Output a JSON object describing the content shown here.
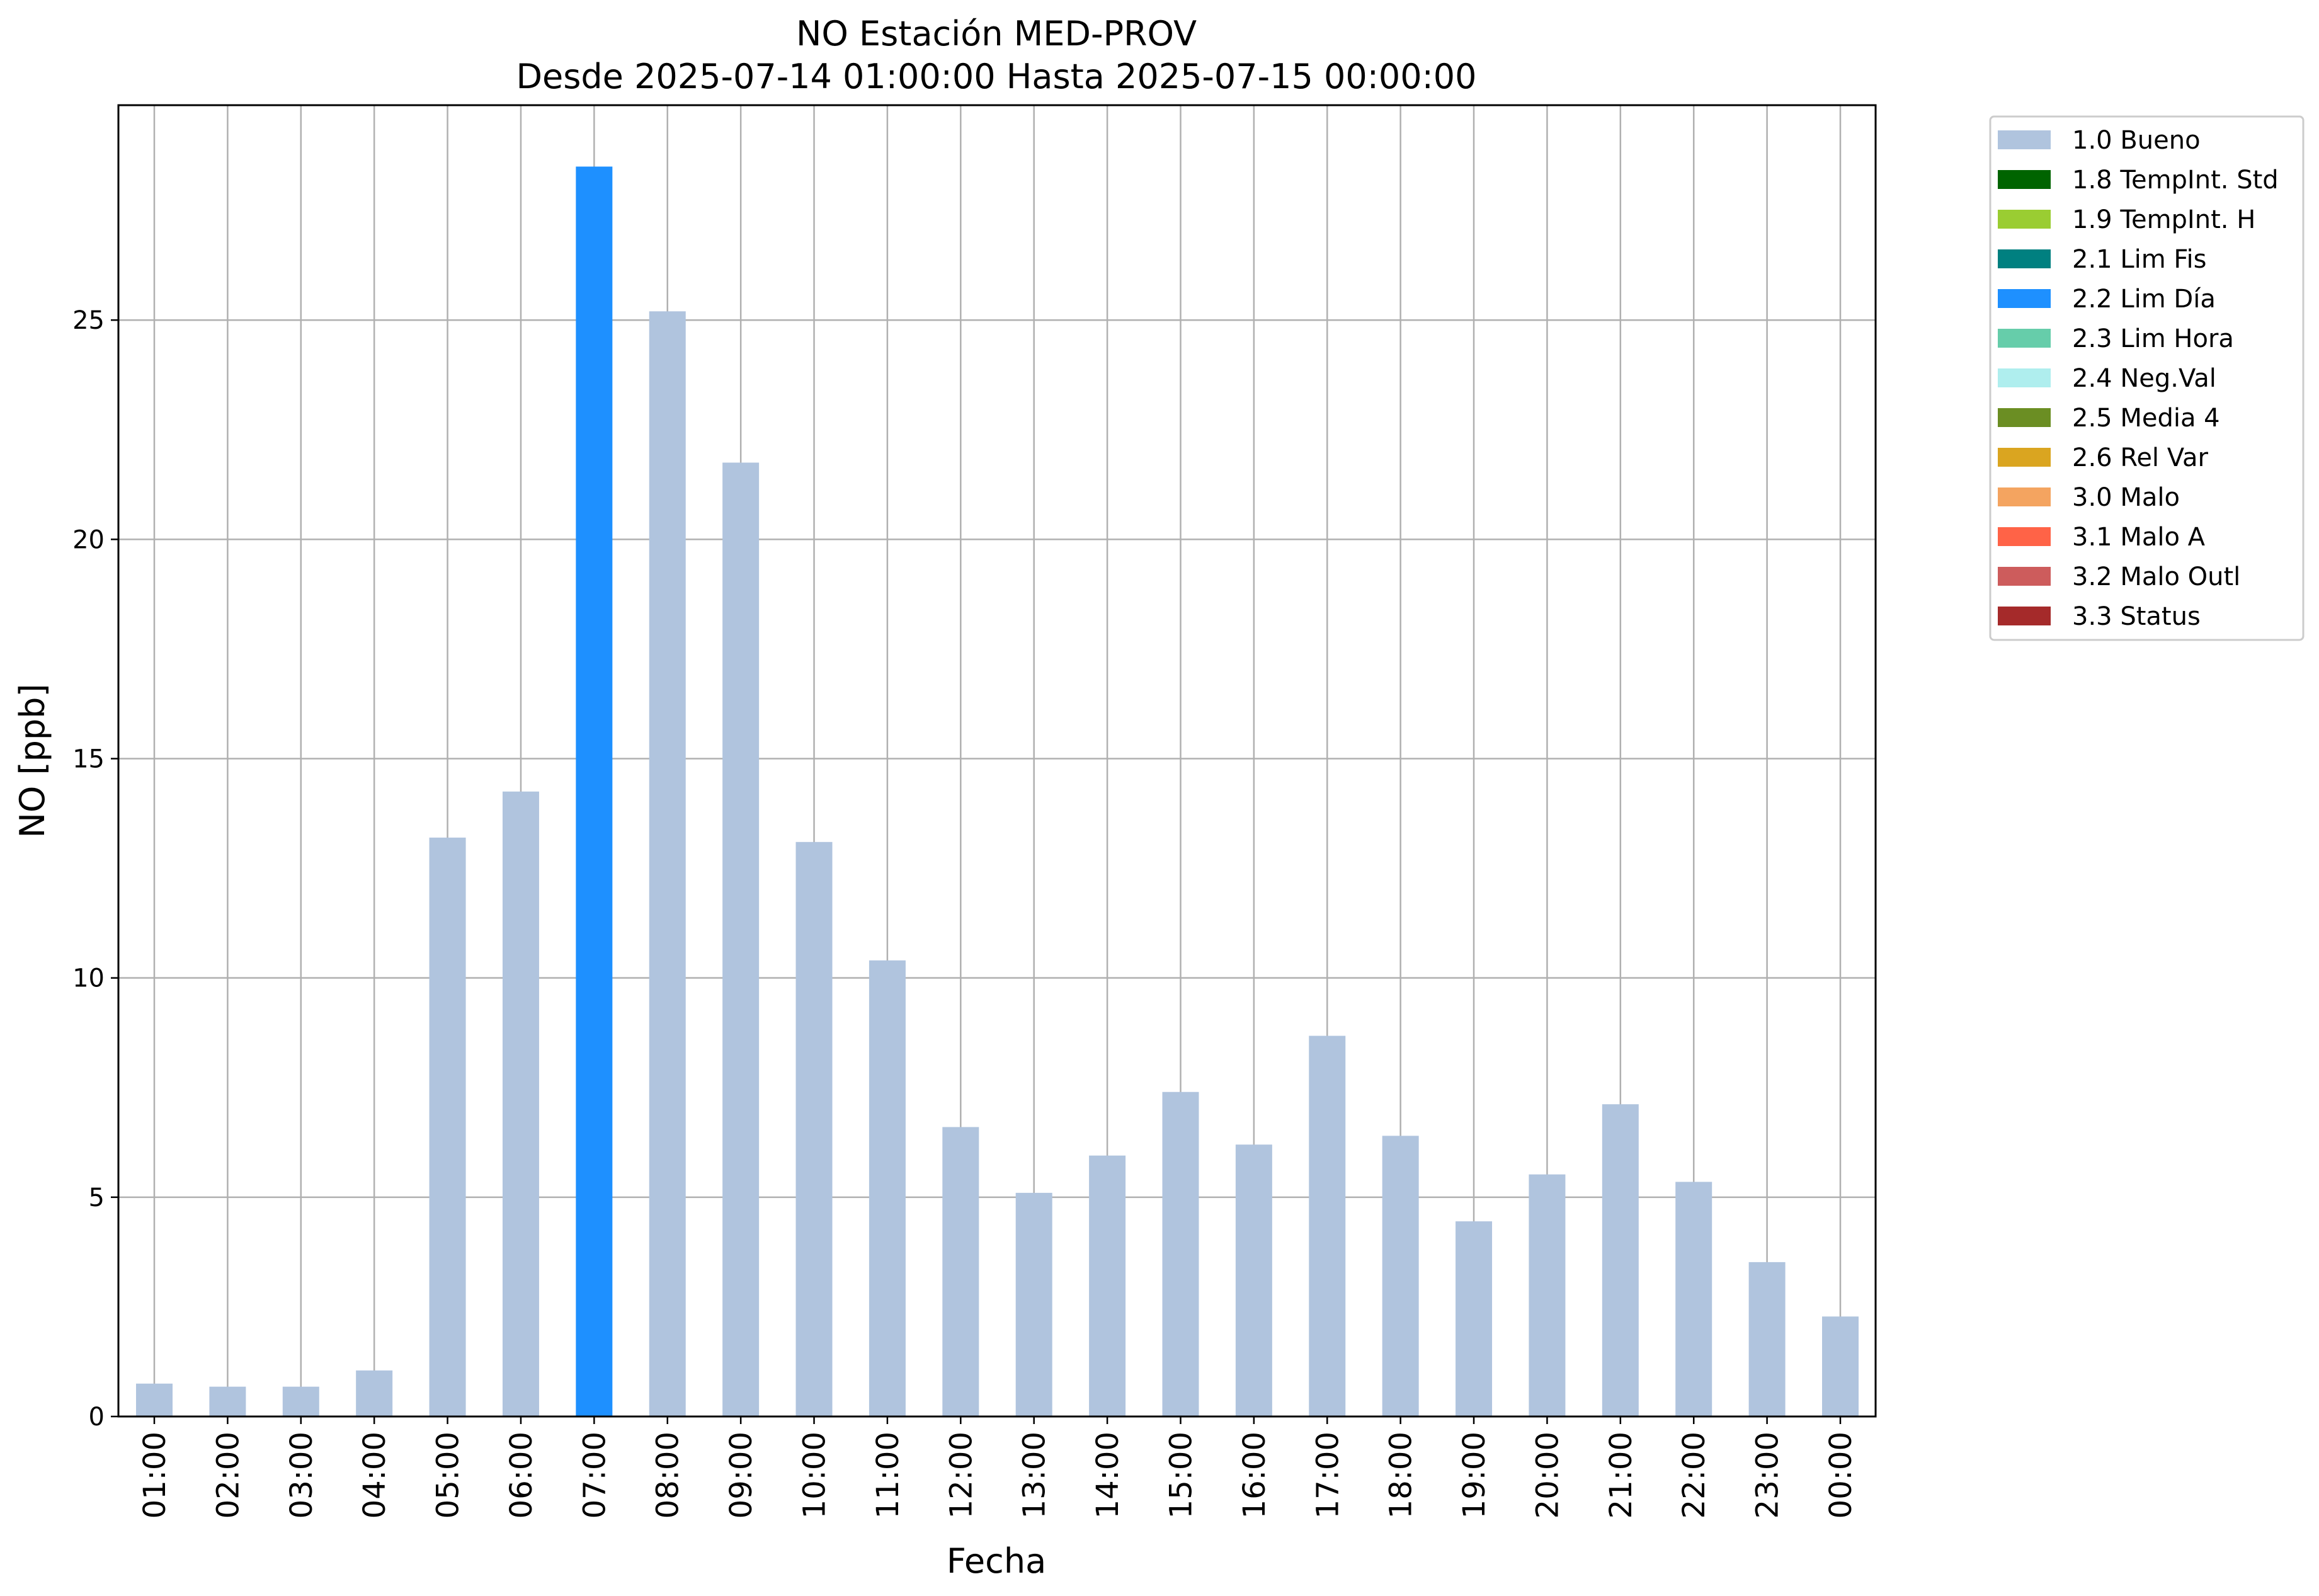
{
  "chart_data": {
    "type": "bar",
    "title": "NO Estación MED-PROV",
    "subtitle": "Desde 2025-07-14 01:00:00 Hasta 2025-07-15 00:00:00",
    "xlabel": "Fecha",
    "ylabel": "NO [ppb]",
    "ylim": [
      0,
      29.9
    ],
    "yticks": [
      0,
      5,
      10,
      15,
      20,
      25
    ],
    "grid": true,
    "legend_position": "outside-top-right",
    "categories": [
      "01:00",
      "02:00",
      "03:00",
      "04:00",
      "05:00",
      "06:00",
      "07:00",
      "08:00",
      "09:00",
      "10:00",
      "11:00",
      "12:00",
      "13:00",
      "14:00",
      "15:00",
      "16:00",
      "17:00",
      "18:00",
      "19:00",
      "20:00",
      "21:00",
      "22:00",
      "23:00",
      "00:00"
    ],
    "values": [
      0.75,
      0.68,
      0.68,
      1.05,
      13.2,
      14.25,
      28.5,
      25.2,
      21.75,
      13.1,
      10.4,
      6.6,
      5.1,
      5.95,
      7.4,
      6.2,
      8.68,
      6.4,
      4.45,
      5.52,
      7.12,
      5.35,
      3.52,
      2.28
    ],
    "flags": [
      "1.0",
      "1.0",
      "1.0",
      "1.0",
      "1.0",
      "1.0",
      "2.2",
      "1.0",
      "1.0",
      "1.0",
      "1.0",
      "1.0",
      "1.0",
      "1.0",
      "1.0",
      "1.0",
      "1.0",
      "1.0",
      "1.0",
      "1.0",
      "1.0",
      "1.0",
      "1.0",
      "1.0"
    ],
    "legend": [
      {
        "code": "1.0",
        "label": "1.0 Bueno",
        "color": "#b0c4de"
      },
      {
        "code": "1.8",
        "label": "1.8 TempInt. Std",
        "color": "#006400"
      },
      {
        "code": "1.9",
        "label": "1.9 TempInt. H",
        "color": "#9acd32"
      },
      {
        "code": "2.1",
        "label": "2.1 Lim Fis",
        "color": "#008080"
      },
      {
        "code": "2.2",
        "label": "2.2 Lim Día",
        "color": "#1e90ff"
      },
      {
        "code": "2.3",
        "label": "2.3 Lim Hora",
        "color": "#66cdaa"
      },
      {
        "code": "2.4",
        "label": "2.4 Neg.Val",
        "color": "#afeeee"
      },
      {
        "code": "2.5",
        "label": "2.5 Media 4",
        "color": "#6b8e23"
      },
      {
        "code": "2.6",
        "label": "2.6 Rel Var",
        "color": "#daa520"
      },
      {
        "code": "3.0",
        "label": "3.0 Malo",
        "color": "#f4a460"
      },
      {
        "code": "3.1",
        "label": "3.1 Malo A",
        "color": "#ff6347"
      },
      {
        "code": "3.2",
        "label": "3.2 Malo Outl",
        "color": "#cd5c5c"
      },
      {
        "code": "3.3",
        "label": "3.3 Status",
        "color": "#a52a2a"
      }
    ]
  }
}
